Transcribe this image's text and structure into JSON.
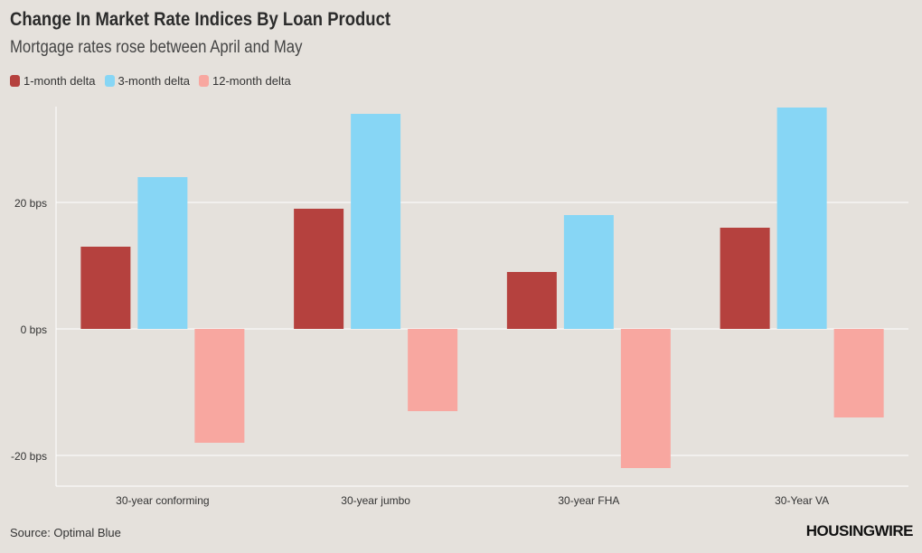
{
  "title": "Change In Market Rate Indices By Loan Product",
  "subtitle": "Mortgage rates rose between April and May",
  "source": "Source: Optimal Blue",
  "brand": "HOUSINGWIRE",
  "legend": [
    {
      "label": "1-month delta",
      "color": "#b5413e"
    },
    {
      "label": "3-month delta",
      "color": "#87d6f5"
    },
    {
      "label": "12-month delta",
      "color": "#f8a7a0"
    }
  ],
  "chart_data": {
    "type": "bar",
    "categories": [
      "30-year conforming",
      "30-year jumbo",
      "30-year FHA",
      "30-Year VA"
    ],
    "series": [
      {
        "name": "1-month delta",
        "color": "#b5413e",
        "values": [
          13,
          19,
          9,
          16
        ]
      },
      {
        "name": "3-month delta",
        "color": "#87d6f5",
        "values": [
          24,
          34,
          18,
          35
        ]
      },
      {
        "name": "12-month delta",
        "color": "#f8a7a0",
        "values": [
          -18,
          -13,
          -22,
          -14
        ]
      }
    ],
    "yticks": [
      {
        "value": 20,
        "label": "20 bps"
      },
      {
        "value": 0,
        "label": "0 bps"
      },
      {
        "value": -20,
        "label": "-20 bps"
      }
    ],
    "ylim": [
      -25,
      35
    ],
    "grid": true,
    "legend_position": "top-left"
  }
}
